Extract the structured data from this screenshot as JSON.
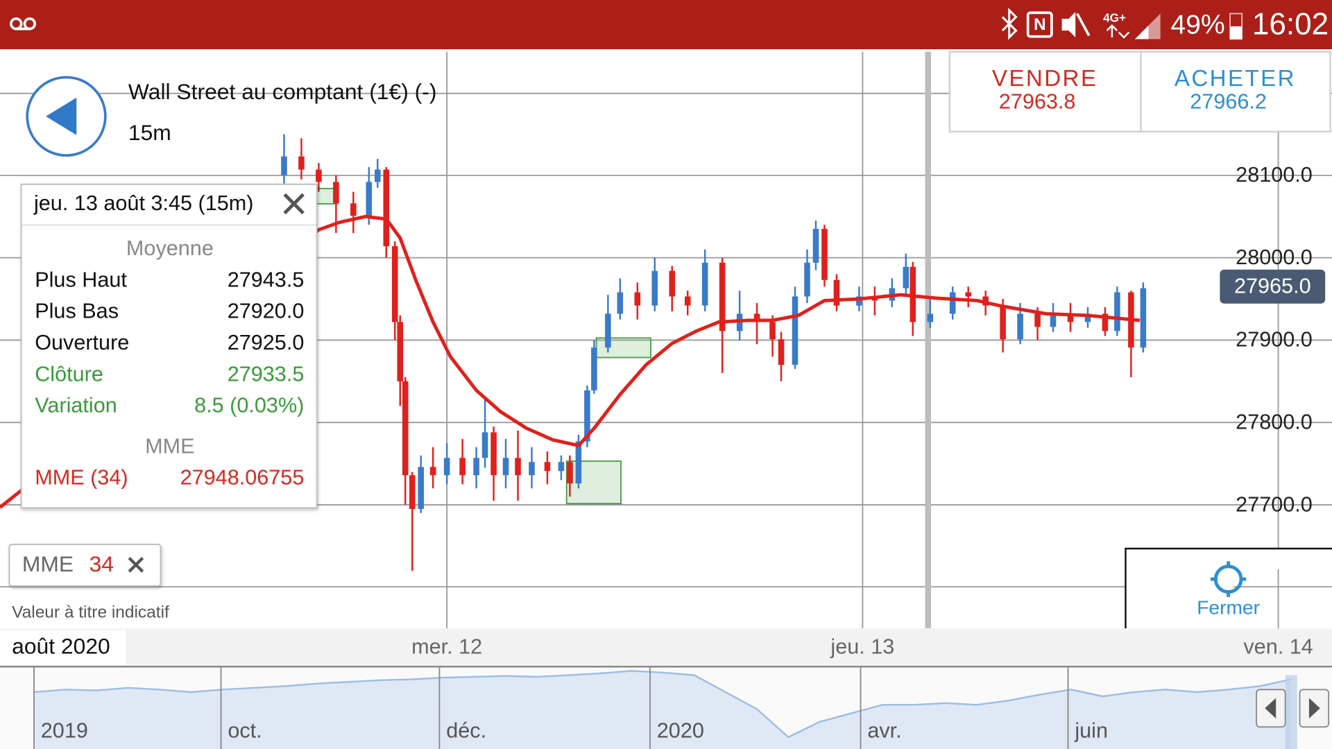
{
  "status_bar": {
    "network": "4G+",
    "battery": "49%",
    "time": "16:02"
  },
  "header": {
    "title": "Wall Street au comptant (1€) (-)",
    "interval": "15m"
  },
  "sell": {
    "label": "VENDRE",
    "price": "27963.8"
  },
  "buy": {
    "label": "ACHETER",
    "price": "27966.2"
  },
  "tooltip": {
    "title": "jeu. 13 août 3:45 (15m)",
    "section1": "Moyenne",
    "rows": [
      [
        "Plus Haut",
        "27943.5"
      ],
      [
        "Plus Bas",
        "27920.0"
      ],
      [
        "Ouverture",
        "27925.0"
      ],
      [
        "Clôture",
        "27933.5"
      ],
      [
        "Variation",
        "8.5 (0.03%)"
      ]
    ],
    "section2": "MME",
    "indicator_row": [
      "MME (34)",
      "27948.06755"
    ]
  },
  "indicator_chip": {
    "name": "MME",
    "period": "34"
  },
  "disclaimer": "Valeur à titre indicatif",
  "close_button": "Fermer",
  "chart_data": [
    {
      "type": "candlestick",
      "x_label": "août 2020",
      "xlim": [
        -1.8,
        75.1
      ],
      "xticks": [
        {
          "value": 24,
          "label": "mer. 12"
        },
        {
          "value": 48,
          "label": "jeu. 13"
        },
        {
          "value": 72,
          "label": "ven. 14"
        }
      ],
      "ylim": [
        27550,
        28250
      ],
      "yticks": [
        {
          "value": 28100,
          "label": "28100.0"
        },
        {
          "value": 28000,
          "label": "28000.0"
        },
        {
          "value": 27900,
          "label": "27900.0"
        },
        {
          "value": 27800,
          "label": "27800.0"
        },
        {
          "value": 27700,
          "label": "27700.0"
        }
      ],
      "grid": true,
      "up_color": "#3a7bc8",
      "down_color": "#e0201c",
      "x": [
        14.6,
        15.6,
        16.6,
        17.6,
        18.6,
        19.5,
        20.0,
        20.5,
        21.0,
        21.3,
        21.6,
        22.0,
        22.5,
        23.2,
        24.0,
        24.9,
        25.7,
        26.2,
        26.7,
        27.4,
        28.1,
        28.9,
        29.8,
        30.6,
        31.1,
        31.6,
        32.1,
        32.5,
        33.3,
        34.0,
        35.0,
        36.0,
        37.0,
        37.9,
        38.9,
        39.9,
        40.9,
        41.9,
        42.8,
        43.3,
        44.1,
        44.8,
        45.3,
        45.8,
        46.5,
        47.8,
        48.7,
        49.7,
        50.5,
        50.9,
        51.9,
        53.2,
        54.1,
        55.1,
        56.1,
        57.1,
        58.1,
        59.0,
        60.0,
        61.0,
        62.0,
        62.7,
        63.5,
        64.2
      ],
      "open": [
        28100,
        28123,
        28107,
        28092,
        28066,
        28051,
        28092,
        28107,
        28014,
        27922,
        27850,
        27736,
        27695,
        27746,
        27736,
        27757,
        27736,
        27757,
        27788,
        27736,
        27757,
        27736,
        27752,
        27741,
        27752,
        27726,
        27777,
        27839,
        27891,
        27932,
        27958,
        27942,
        27984,
        27953,
        27942,
        27994,
        27911,
        27932,
        27922,
        27901,
        27870,
        27953,
        27994,
        28035,
        27973,
        27942,
        27953,
        27948,
        27963,
        27989,
        27922,
        27932,
        27958,
        27953,
        27942,
        27901,
        27932,
        27916,
        27932,
        27922,
        27932,
        27911,
        27958,
        27891
      ],
      "high": [
        28150,
        28145,
        28115,
        28100,
        28080,
        28110,
        28120,
        28110,
        28020,
        27930,
        27855,
        27740,
        27760,
        27770,
        27775,
        27780,
        27770,
        27830,
        27795,
        27780,
        27790,
        27770,
        27765,
        27760,
        27760,
        27785,
        27845,
        27900,
        27955,
        27975,
        27970,
        28000,
        27990,
        27960,
        28010,
        28000,
        27960,
        27945,
        27930,
        27910,
        27965,
        28010,
        28045,
        28040,
        27980,
        27965,
        27965,
        27975,
        28005,
        27995,
        27950,
        27965,
        27965,
        27960,
        27950,
        27945,
        27940,
        27945,
        27945,
        27940,
        27940,
        27965,
        27960,
        27970
      ],
      "low": [
        28090,
        28095,
        28080,
        28030,
        28030,
        28040,
        28085,
        28000,
        27900,
        27820,
        27700,
        27620,
        27690,
        27720,
        27725,
        27725,
        27720,
        27745,
        27705,
        27720,
        27705,
        27720,
        27725,
        27730,
        27710,
        27720,
        27770,
        27835,
        27885,
        27925,
        27925,
        27935,
        27935,
        27930,
        27935,
        27860,
        27900,
        27895,
        27880,
        27850,
        27865,
        27945,
        27985,
        27965,
        27935,
        27935,
        27930,
        27940,
        27955,
        27905,
        27915,
        27925,
        27940,
        27930,
        27885,
        27895,
        27900,
        27910,
        27910,
        27915,
        27905,
        27905,
        27855,
        27885
      ],
      "close": [
        28123,
        28107,
        28092,
        28066,
        28051,
        28092,
        28107,
        28014,
        27922,
        27850,
        27736,
        27695,
        27746,
        27736,
        27757,
        27736,
        27757,
        27788,
        27736,
        27757,
        27736,
        27752,
        27741,
        27752,
        27726,
        27777,
        27839,
        27891,
        27932,
        27958,
        27942,
        27984,
        27953,
        27942,
        27994,
        27911,
        27932,
        27922,
        27901,
        27870,
        27953,
        27994,
        28035,
        27973,
        27942,
        27953,
        27948,
        27963,
        27989,
        27922,
        27932,
        27958,
        27953,
        27942,
        27901,
        27932,
        27916,
        27932,
        27922,
        27932,
        27911,
        27958,
        27891,
        27963
      ],
      "mme": {
        "color": "#e0201c",
        "x": [
          -1.8,
          -0.6,
          16.6,
          17.8,
          19.3,
          20.5,
          21.3,
          22.2,
          23.2,
          24.2,
          25.7,
          27.1,
          28.6,
          30.1,
          31.6,
          32.5,
          34.0,
          35.5,
          37.0,
          38.4,
          39.7,
          41.4,
          42.8,
          44.3,
          45.8,
          47.8,
          50.2,
          52.2,
          54.6,
          56.1,
          58.6,
          61.0,
          64.0
        ],
        "values": [
          27697,
          27717,
          28034,
          28043,
          28050,
          28047,
          28024,
          27973,
          27922,
          27880,
          27839,
          27813,
          27793,
          27779,
          27772,
          27793,
          27834,
          27870,
          27896,
          27911,
          27922,
          27924,
          27924,
          27930,
          27948,
          27950,
          27955,
          27951,
          27948,
          27941,
          27932,
          27930,
          27924
        ]
      },
      "current_price": {
        "value": 27965,
        "label": "27965.0"
      },
      "current_price_color": "#4a5a72"
    },
    {
      "type": "area",
      "xlim": [
        0,
        40
      ],
      "ylim": [
        15000,
        32000
      ],
      "xticks": [
        {
          "value": 0,
          "label": "2019"
        },
        {
          "value": 5.95,
          "label": "oct."
        },
        {
          "value": 12.9,
          "label": "déc."
        },
        {
          "value": 19.6,
          "label": "2020"
        },
        {
          "value": 26.3,
          "label": "avr."
        },
        {
          "value": 32.9,
          "label": "juin"
        }
      ],
      "color": "#9dbde3",
      "fill": "#dfe9f6",
      "x": [
        0,
        1,
        2,
        3,
        4,
        5,
        6,
        7,
        8,
        9,
        10,
        11,
        12,
        13,
        14,
        15,
        16,
        17,
        18,
        19,
        20,
        21,
        22,
        23,
        24,
        25,
        26,
        27,
        28,
        29,
        30,
        31,
        32,
        33,
        34,
        35,
        36,
        37,
        38,
        39,
        40
      ],
      "values": [
        27380,
        27934,
        27750,
        28304,
        27934,
        27380,
        27934,
        28304,
        28674,
        29228,
        29598,
        29967,
        30152,
        30522,
        30706,
        30891,
        30706,
        31076,
        31446,
        32000,
        31630,
        31076,
        27380,
        23684,
        17586,
        20912,
        22760,
        24608,
        24608,
        24978,
        24608,
        25532,
        26826,
        27934,
        26456,
        27380,
        27934,
        27380,
        27934,
        28674,
        30152
      ]
    }
  ]
}
